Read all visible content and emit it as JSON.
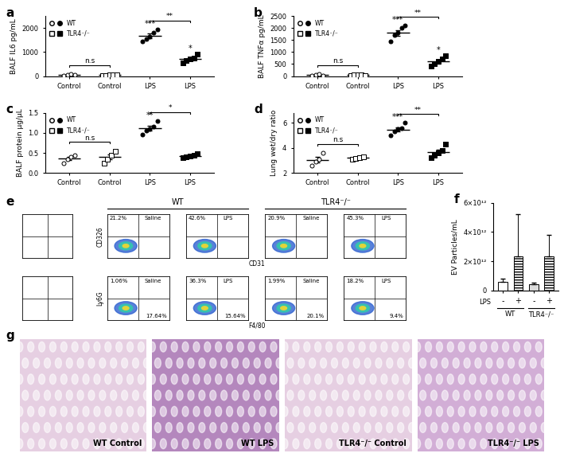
{
  "chart_data": [
    {
      "panel": "a",
      "type": "dot",
      "y_label": "BALF IL6 pg/mL",
      "categories": [
        "Control",
        "Control",
        "LPS",
        "LPS"
      ],
      "ylim": [
        0,
        2500
      ],
      "yticks": [
        0,
        1000,
        2000
      ],
      "legend": "upper left",
      "series": [
        {
          "name": "WT",
          "marker": "circle",
          "colors": [
            "#ffffff",
            null,
            "#000000",
            null
          ],
          "values": [
            [
              30,
              60,
              90,
              50
            ],
            null,
            [
              1450,
              1550,
              1650,
              1800,
              1950
            ],
            null
          ],
          "means": [
            58,
            null,
            1680,
            null
          ],
          "errors": [
            13,
            null,
            90,
            null
          ]
        },
        {
          "name": "TLR4⁻/⁻",
          "marker": "square",
          "colors": [
            null,
            "#ffffff",
            null,
            "#000000"
          ],
          "values": [
            null,
            [
              20,
              30,
              40,
              60,
              50
            ],
            null,
            [
              550,
              650,
              700,
              750,
              900
            ]
          ],
          "means": [
            null,
            40,
            null,
            710
          ],
          "errors": [
            null,
            7,
            null,
            57
          ]
        }
      ],
      "annotations": [
        {
          "text": "n.s",
          "from": 0,
          "to": 1
        },
        {
          "text": "**",
          "from": 2,
          "to": 3
        },
        {
          "text": "***",
          "at": 2
        },
        {
          "text": "*",
          "at": 3
        }
      ]
    },
    {
      "panel": "b",
      "type": "dot",
      "y_label": "BALF TNFα pg/mL",
      "categories": [
        "Control",
        "Control",
        "LPS",
        "LPS"
      ],
      "ylim": [
        0,
        2500
      ],
      "yticks": [
        0,
        500,
        1000,
        1500,
        2000,
        2500
      ],
      "legend": "upper left",
      "series": [
        {
          "name": "WT",
          "marker": "circle",
          "colors": [
            "#ffffff",
            null,
            "#000000",
            null
          ],
          "values": [
            [
              30,
              50,
              80,
              20
            ],
            null,
            [
              1450,
              1700,
              1800,
              2000,
              2100
            ],
            null
          ],
          "means": [
            45,
            null,
            1810,
            null
          ],
          "errors": [
            13,
            null,
            115,
            null
          ]
        },
        {
          "name": "TLR4⁻/⁻",
          "marker": "square",
          "colors": [
            null,
            "#ffffff",
            null,
            "#000000"
          ],
          "values": [
            null,
            [
              20,
              40,
              60,
              50,
              30
            ],
            null,
            [
              400,
              500,
              600,
              700,
              850
            ]
          ],
          "means": [
            null,
            40,
            null,
            610
          ],
          "errors": [
            null,
            7,
            null,
            78
          ]
        }
      ],
      "annotations": [
        {
          "text": "n.s",
          "from": 0,
          "to": 1
        },
        {
          "text": "**",
          "from": 2,
          "to": 3
        },
        {
          "text": "***",
          "at": 2
        },
        {
          "text": "*",
          "at": 3
        }
      ]
    },
    {
      "panel": "c",
      "type": "dot",
      "y_label": "BALF protein µg/µL",
      "categories": [
        "Control",
        "Control",
        "LPS",
        "LPS"
      ],
      "ylim": [
        0,
        1.5
      ],
      "yticks": [
        {
          "value": 0.0,
          "label": "0.0"
        },
        0.5,
        {
          "value": 1.0,
          "label": "1.0"
        },
        1.5
      ],
      "legend": "upper left",
      "series": [
        {
          "name": "WT",
          "marker": "circle",
          "colors": [
            "#ffffff",
            null,
            "#000000",
            null
          ],
          "values": [
            [
              0.25,
              0.35,
              0.4,
              0.45
            ],
            null,
            [
              0.95,
              1.05,
              1.1,
              1.15,
              1.3
            ],
            null
          ],
          "means": [
            0.36,
            null,
            1.11,
            null
          ],
          "errors": [
            0.04,
            null,
            0.06,
            null
          ]
        },
        {
          "name": "TLR4⁻/⁻",
          "marker": "square",
          "colors": [
            null,
            "#ffffff",
            null,
            "#000000"
          ],
          "values": [
            null,
            [
              0.25,
              0.35,
              0.45,
              0.55
            ],
            null,
            [
              0.38,
              0.4,
              0.42,
              0.45,
              0.48
            ]
          ],
          "means": [
            null,
            0.4,
            null,
            0.43
          ],
          "errors": [
            null,
            0.06,
            null,
            0.02
          ]
        }
      ],
      "annotations": [
        {
          "text": "n.s",
          "from": 0,
          "to": 1
        },
        {
          "text": "*",
          "from": 2,
          "to": 3
        },
        {
          "text": "**",
          "at": 2
        }
      ]
    },
    {
      "panel": "d",
      "type": "dot",
      "y_label": "Lung wet/dry ratio",
      "categories": [
        "Control",
        "Control",
        "LPS",
        "LPS"
      ],
      "ylim": [
        2,
        6.8
      ],
      "yticks": [
        2,
        4,
        6
      ],
      "legend": "upper left",
      "series": [
        {
          "name": "WT",
          "marker": "circle",
          "colors": [
            "#ffffff",
            null,
            "#000000",
            null
          ],
          "values": [
            [
              2.6,
              2.9,
              3.1,
              3.6
            ],
            null,
            [
              5.0,
              5.3,
              5.5,
              5.6,
              6.0
            ],
            null
          ],
          "means": [
            3.05,
            null,
            5.48,
            null
          ],
          "errors": [
            0.21,
            null,
            0.17,
            null
          ]
        },
        {
          "name": "TLR4⁻/⁻",
          "marker": "square",
          "colors": [
            null,
            "#ffffff",
            null,
            "#000000"
          ],
          "values": [
            null,
            [
              3.1,
              3.15,
              3.2,
              3.3
            ],
            null,
            [
              3.2,
              3.4,
              3.6,
              3.8,
              4.3
            ]
          ],
          "means": [
            null,
            3.19,
            null,
            3.66
          ],
          "errors": [
            null,
            0.04,
            null,
            0.19
          ]
        }
      ],
      "annotations": [
        {
          "text": "n.s",
          "from": 0,
          "to": 1
        },
        {
          "text": "**",
          "from": 2,
          "to": 3
        },
        {
          "text": "***",
          "at": 2
        }
      ]
    },
    {
      "panel": "f",
      "type": "bar",
      "y_label": "EV Particles/mL",
      "categories": [
        "-",
        "+",
        "-",
        "+"
      ],
      "row_label": "LPS",
      "group_labels": [
        "WT",
        "TLR4⁻/⁻"
      ],
      "values": [
        600000000000.0,
        2350000000000.0,
        450000000000.0,
        2350000000000.0
      ],
      "errors": [
        200000000000.0,
        2900000000000.0,
        100000000000.0,
        1450000000000.0
      ],
      "colors": [
        "#ffffff",
        "#ffffff",
        "#dcdcdc",
        "#ffffff"
      ],
      "ylim": [
        0,
        6000000000000.0
      ],
      "yticks": [
        0,
        {
          "value": 2000000000000.0,
          "label": "2×10¹²"
        },
        {
          "value": 4000000000000.0,
          "label": "4×10¹²"
        },
        {
          "value": 6000000000000.0,
          "label": "6×10¹²"
        }
      ]
    }
  ],
  "flow_panel": {
    "panel": "e",
    "groups": [
      "WT",
      "TLR4⁻/⁻"
    ],
    "rows": [
      {
        "y_label": "CD326",
        "x_label": "CD31",
        "plots": [
          {
            "condition": "Saline",
            "upper_left": "21.2%"
          },
          {
            "condition": "LPS",
            "upper_left": "42.6%"
          },
          {
            "condition": "Saline",
            "upper_left": "20.9%"
          },
          {
            "condition": "LPS",
            "upper_left": "45.3%"
          }
        ]
      },
      {
        "y_label": "Ly6G",
        "x_label": "F4/80",
        "plots": [
          {
            "condition": "Saline",
            "upper_left": "1.06%",
            "lower_right": "17.64%"
          },
          {
            "condition": "LPS",
            "upper_left": "36.3%",
            "lower_right": "15.64%"
          },
          {
            "condition": "Saline",
            "upper_left": "1.99%",
            "lower_right": "20.1%"
          },
          {
            "condition": "LPS",
            "upper_left": "18.2%",
            "lower_right": "9.4%"
          }
        ]
      }
    ]
  },
  "image_panel": {
    "panel": "g",
    "images": [
      {
        "label": "WT Control",
        "color": "#e6cfe2"
      },
      {
        "label": "WT LPS",
        "color": "#b487bd"
      },
      {
        "label": "TLR4⁻/⁻ Control",
        "color": "#e6cfe2"
      },
      {
        "label": "TLR4⁻/⁻ LPS",
        "color": "#d2aed6"
      }
    ]
  }
}
